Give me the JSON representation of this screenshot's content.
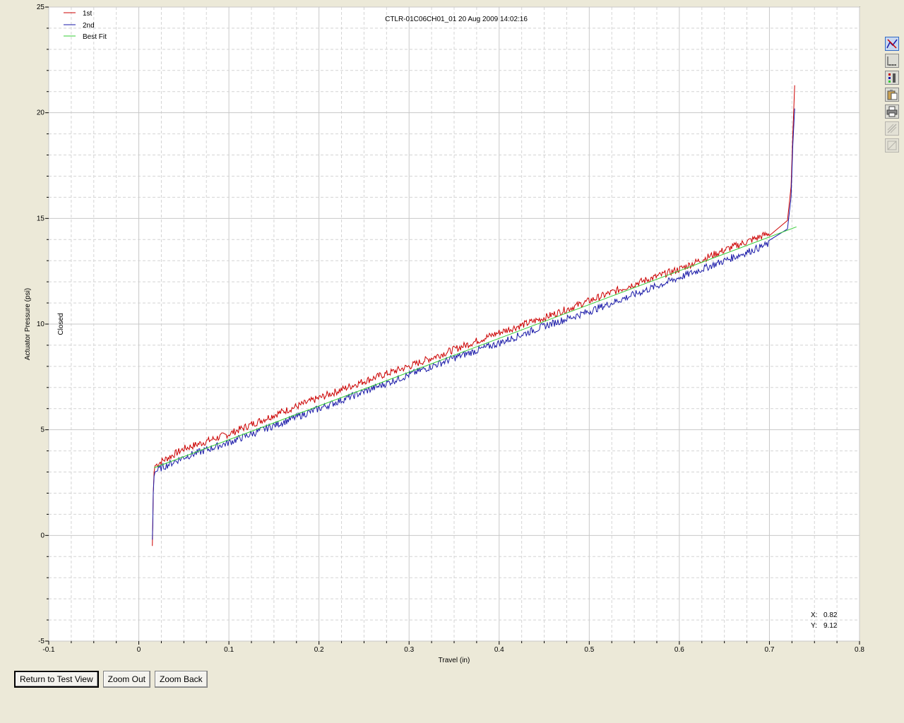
{
  "chart_data": {
    "type": "line",
    "title": "CTLR-01C06CH01_01 20 Aug 2009 14:02:16",
    "xlabel": "Travel (in)",
    "ylabel": "Actuator Pressure (psi)",
    "side_label": "Closed",
    "xlim": [
      -0.1,
      0.8
    ],
    "ylim": [
      -5,
      25
    ],
    "x_ticks": [
      "-0.1",
      "0",
      "0.1",
      "0.2",
      "0.3",
      "0.4",
      "0.5",
      "0.6",
      "0.7",
      "0.8"
    ],
    "y_ticks": [
      "-5",
      "0",
      "5",
      "10",
      "15",
      "20",
      "25"
    ],
    "grid": true,
    "legend_position": "top-left",
    "series": [
      {
        "name": "1st",
        "color": "#cc0000",
        "x": [
          0.015,
          0.0155,
          0.016,
          0.017,
          0.018,
          0.025,
          0.05,
          0.1,
          0.15,
          0.2,
          0.25,
          0.3,
          0.35,
          0.4,
          0.45,
          0.5,
          0.55,
          0.6,
          0.65,
          0.7,
          0.72,
          0.724,
          0.726,
          0.728
        ],
        "y": [
          -0.5,
          0.5,
          2.0,
          3.0,
          3.3,
          3.5,
          4.1,
          4.8,
          5.7,
          6.5,
          7.3,
          8.0,
          8.8,
          9.6,
          10.3,
          11.1,
          11.9,
          12.6,
          13.5,
          14.3,
          14.9,
          16.5,
          19.0,
          21.3
        ]
      },
      {
        "name": "2nd",
        "color": "#1a1aa8",
        "x": [
          0.015,
          0.0155,
          0.016,
          0.017,
          0.018,
          0.025,
          0.05,
          0.1,
          0.15,
          0.2,
          0.25,
          0.3,
          0.35,
          0.4,
          0.45,
          0.5,
          0.55,
          0.6,
          0.65,
          0.7,
          0.72,
          0.724,
          0.726,
          0.728
        ],
        "y": [
          -0.2,
          0.5,
          2.0,
          2.8,
          3.0,
          3.2,
          3.7,
          4.4,
          5.2,
          6.0,
          6.8,
          7.6,
          8.4,
          9.1,
          9.9,
          10.6,
          11.4,
          12.2,
          13.0,
          13.8,
          14.5,
          16.0,
          18.5,
          20.2
        ]
      },
      {
        "name": "Best Fit",
        "color": "#33cc33",
        "x": [
          0.017,
          0.73
        ],
        "y": [
          3.2,
          14.6
        ]
      }
    ]
  },
  "cursor_readout": {
    "x_label": "X:",
    "x_value": "0.82",
    "y_label": "Y:",
    "y_value": "9.12"
  },
  "toolbar": {
    "icons": [
      "series-select-icon",
      "axis-scale-icon",
      "legend-icon",
      "copy-clipboard-icon",
      "print-icon",
      "disabled-tool-icon",
      "disabled-tool-2-icon"
    ]
  },
  "buttons": {
    "return_label": "Return to Test View",
    "zoom_out_label": "Zoom Out",
    "zoom_back_label": "Zoom Back"
  }
}
